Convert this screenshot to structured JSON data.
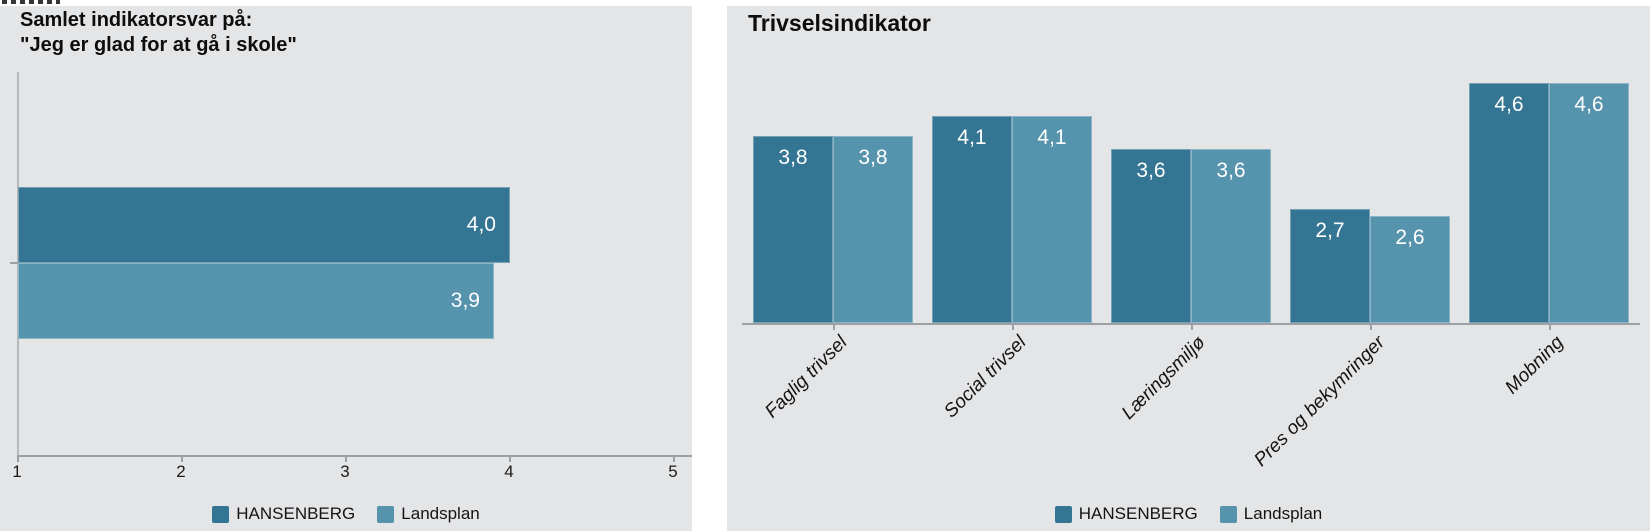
{
  "colors": {
    "panel_bg": "#e4e5e7",
    "series_dark": "#337592",
    "series_light": "#5693ad",
    "axis": "#9da0a3",
    "value_label": "#ffffff"
  },
  "chart_data": [
    {
      "type": "bar",
      "orientation": "horizontal",
      "title_line1": "Samlet indikatorsvar på:",
      "title_line2": "\"Jeg er glad for at gå i skole\"",
      "categories": [
        ""
      ],
      "series": [
        {
          "name": "HANSENBERG",
          "values": [
            4.0
          ],
          "labels": [
            "4,0"
          ],
          "color": "#337592"
        },
        {
          "name": "Landsplan",
          "values": [
            3.9
          ],
          "labels": [
            "3,9"
          ],
          "color": "#5693ad"
        }
      ],
      "xlim": [
        1,
        5
      ],
      "x_ticks": [
        "1",
        "2",
        "3",
        "4",
        "5"
      ],
      "grid": false,
      "legend_position": "bottom"
    },
    {
      "type": "bar",
      "orientation": "vertical",
      "title": "Trivselsindikator",
      "categories": [
        "Faglig trivsel",
        "Social trivsel",
        "Læringsmiljø",
        "Pres og bekymringer",
        "Mobning"
      ],
      "series": [
        {
          "name": "HANSENBERG",
          "values": [
            3.8,
            4.1,
            3.6,
            2.7,
            4.6
          ],
          "labels": [
            "3,8",
            "4,1",
            "3,6",
            "2,7",
            "4,6"
          ],
          "color": "#337592"
        },
        {
          "name": "Landsplan",
          "values": [
            3.8,
            4.1,
            3.6,
            2.6,
            4.6
          ],
          "labels": [
            "3,8",
            "4,1",
            "3,6",
            "2,6",
            "4,6"
          ],
          "color": "#5693ad"
        }
      ],
      "ylim": [
        1,
        5
      ],
      "grid": false,
      "legend_position": "bottom"
    }
  ]
}
